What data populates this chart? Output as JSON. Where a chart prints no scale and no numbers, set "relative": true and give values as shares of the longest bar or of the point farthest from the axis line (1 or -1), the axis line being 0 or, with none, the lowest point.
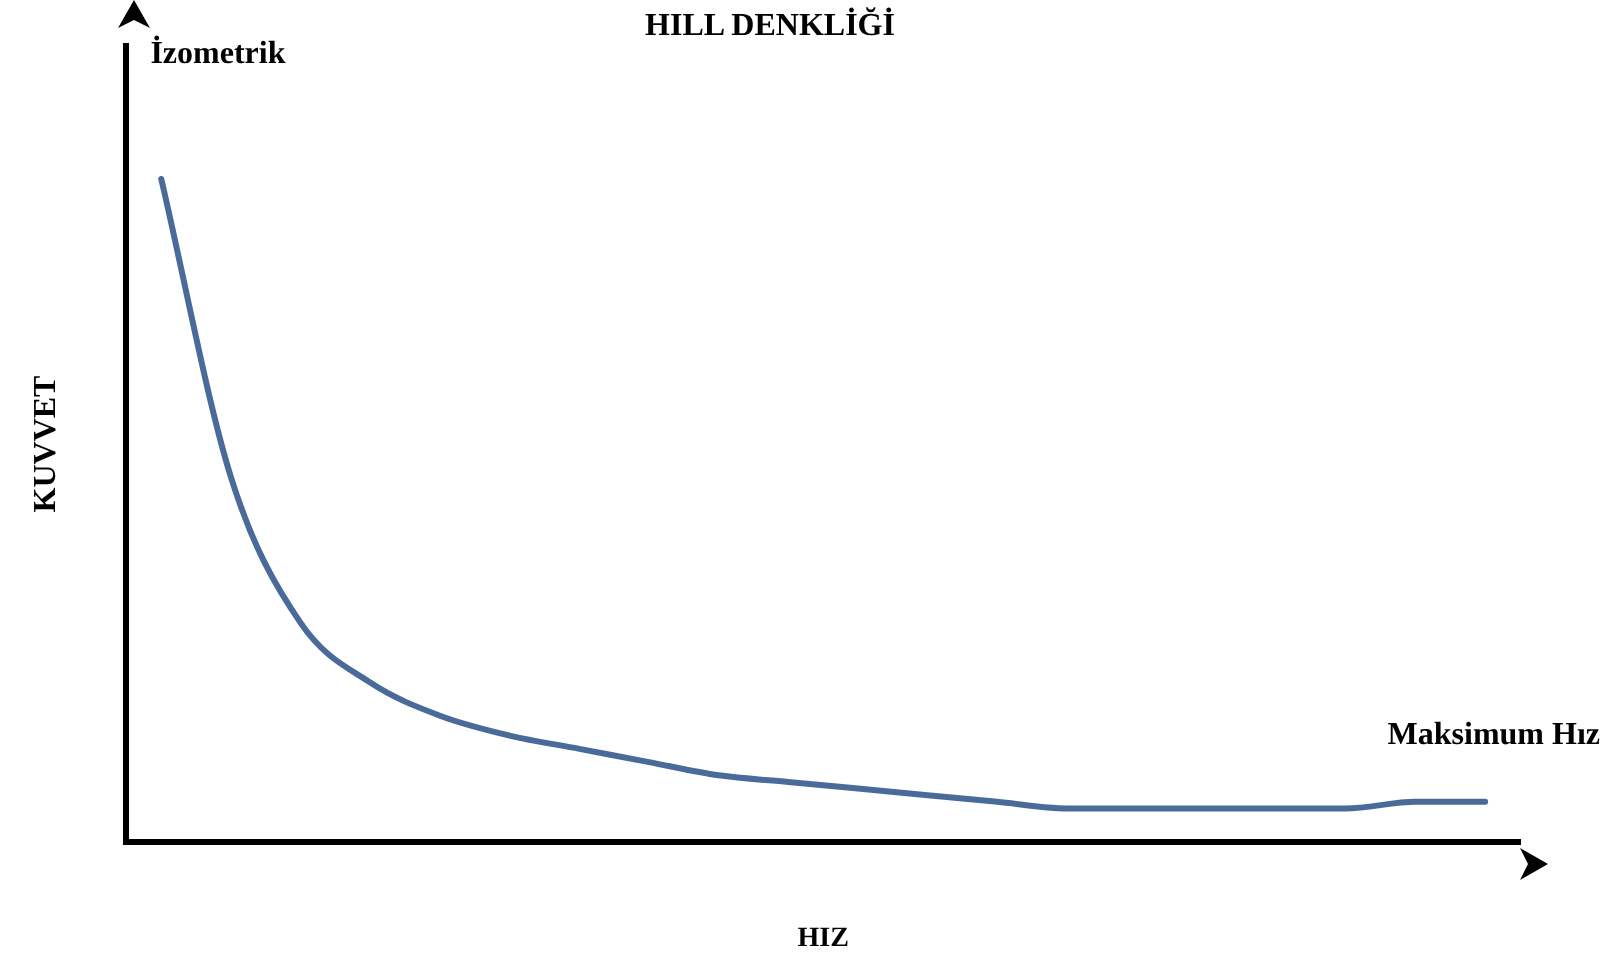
{
  "chart_data": {
    "type": "line",
    "title": "HILL DENKLİĞİ",
    "xlabel": "HIZ",
    "ylabel": "KUVVET",
    "annotations": [
      "İzometrik",
      "Maksimum Hız"
    ],
    "categories": [
      null,
      null,
      null,
      null,
      null,
      null,
      null,
      null,
      null,
      null,
      null,
      null,
      null,
      null,
      null,
      null,
      null,
      null,
      null,
      null
    ],
    "relative": true,
    "series": [
      {
        "color": "#4a6b9a",
        "values": [
          1.0,
          0.55,
          0.33,
          0.24,
          0.19,
          0.16,
          0.14,
          0.12,
          0.1,
          0.09,
          0.08,
          0.07,
          0.06,
          0.05,
          0.05,
          0.05,
          0.05,
          0.05,
          0.06,
          0.06
        ]
      }
    ],
    "legend": false,
    "grid": false,
    "marker": "none",
    "line_style": "solid"
  }
}
